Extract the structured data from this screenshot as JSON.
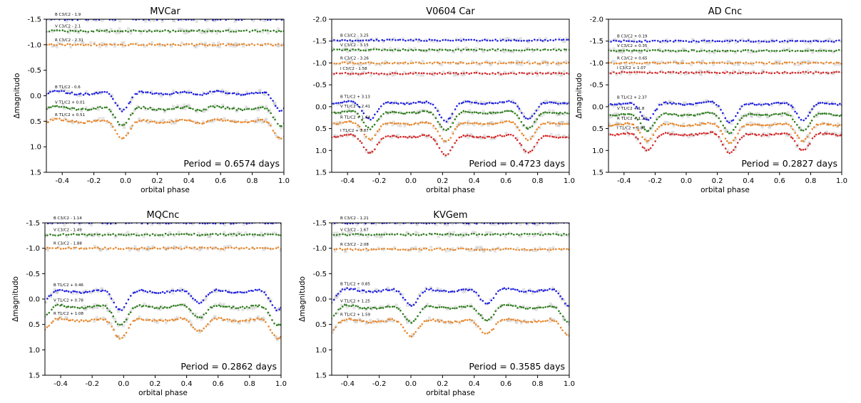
{
  "figure": {
    "xlabel": "orbital phase",
    "ylabel": "Δmagnitudo"
  },
  "chart_data": [
    {
      "type": "scatter",
      "title": "MVCar",
      "xlabel": "orbital phase",
      "ylabel": "Δmagnitudo",
      "xlim": [
        -0.5,
        1.0
      ],
      "ylim": [
        1.5,
        -1.5
      ],
      "y_inverted": true,
      "xticks": [
        "-0.4",
        "-0.2",
        "0.0",
        "0.2",
        "0.4",
        "0.6",
        "0.8",
        "1.0"
      ],
      "yticks": [
        "-1.5",
        "-1.0",
        "-0.5",
        "0.0",
        "0.5",
        "1.0",
        "1.5"
      ],
      "annotation": "Period = 0.6574 days",
      "series": [
        {
          "name": "B C3/C2 - 1.9",
          "color": "#1f1fe0",
          "kind": "flat",
          "base": -1.5
        },
        {
          "name": "V C3/C2 - 2.1",
          "color": "#2e7d1e",
          "kind": "flat",
          "base": -1.27
        },
        {
          "name": "R C3/C2 - 2.31",
          "color": "#e8862a",
          "kind": "flat",
          "base": -1.0
        },
        {
          "name": "B T1/C2 - 0.6",
          "color": "#1f1fe0",
          "kind": "lc",
          "base": -0.08,
          "min1_phase": -0.02,
          "min1_depth": 0.42,
          "min2_phase": 0.47,
          "min2_depth": 0.12
        },
        {
          "name": "V T1/C2 + 0.01",
          "color": "#2e7d1e",
          "kind": "lc",
          "base": 0.22,
          "min1_phase": -0.02,
          "min1_depth": 0.42,
          "min2_phase": 0.47,
          "min2_depth": 0.12
        },
        {
          "name": "R T1/C2 + 0.51",
          "color": "#e8862a",
          "kind": "lc",
          "base": 0.47,
          "min1_phase": -0.02,
          "min1_depth": 0.42,
          "min2_phase": 0.47,
          "min2_depth": 0.12
        }
      ]
    },
    {
      "type": "scatter",
      "title": "V0604 Car",
      "xlabel": "orbital phase",
      "ylabel": "",
      "xlim": [
        -0.5,
        1.0
      ],
      "ylim": [
        1.5,
        -2.0
      ],
      "y_inverted": true,
      "xticks": [
        "-0.4",
        "-0.2",
        "0.0",
        "0.2",
        "0.4",
        "0.6",
        "0.8",
        "1.0"
      ],
      "yticks": [
        "-2.0",
        "-1.5",
        "-1.0",
        "-0.5",
        "0.0",
        "0.5",
        "1.0",
        "1.5"
      ],
      "annotation": "Period = 0.4723 days",
      "series": [
        {
          "name": "B C3/C2 - 3.25",
          "color": "#1f1fe0",
          "kind": "flat",
          "base": -1.52
        },
        {
          "name": "V C3/C2 - 3.15",
          "color": "#2e7d1e",
          "kind": "flat",
          "base": -1.3
        },
        {
          "name": "R C3/C2 - 3.26",
          "color": "#e8862a",
          "kind": "flat",
          "base": -1.0
        },
        {
          "name": "I C3/C2 - 1.58",
          "color": "#d62728",
          "kind": "flat",
          "base": -0.76
        },
        {
          "name": "B T1/C2 + 3.13",
          "color": "#1f1fe0",
          "kind": "lc",
          "base": -0.12,
          "min1_phase": 0.22,
          "min1_depth": 0.5,
          "min2_phase": 0.74,
          "min2_depth": 0.45
        },
        {
          "name": "V T1/C2 + 2.41",
          "color": "#2e7d1e",
          "kind": "lc",
          "base": 0.1,
          "min1_phase": 0.22,
          "min1_depth": 0.5,
          "min2_phase": 0.74,
          "min2_depth": 0.45
        },
        {
          "name": "R T1/C2 + 1.64",
          "color": "#e8862a",
          "kind": "lc",
          "base": 0.35,
          "min1_phase": 0.22,
          "min1_depth": 0.5,
          "min2_phase": 0.74,
          "min2_depth": 0.45
        },
        {
          "name": "I T1/C2 + 3.87",
          "color": "#d62728",
          "kind": "lc",
          "base": 0.65,
          "min1_phase": 0.22,
          "min1_depth": 0.5,
          "min2_phase": 0.74,
          "min2_depth": 0.45
        }
      ]
    },
    {
      "type": "scatter",
      "title": "AD Cnc",
      "xlabel": "orbital phase",
      "ylabel": "Δmagnitudo",
      "xlim": [
        -0.5,
        1.0
      ],
      "ylim": [
        1.5,
        -2.0
      ],
      "y_inverted": true,
      "xticks": [
        "-0.4",
        "-0.2",
        "0.0",
        "0.2",
        "0.4",
        "0.6",
        "0.8",
        "1.0"
      ],
      "yticks": [
        "-2.0",
        "-1.5",
        "-1.0",
        "-0.5",
        "0.0",
        "0.5",
        "1.0",
        "1.5"
      ],
      "annotation": "Period = 0.2827 days",
      "series": [
        {
          "name": "B C3/C2 + 0.19",
          "color": "#1f1fe0",
          "kind": "flat",
          "base": -1.5
        },
        {
          "name": "V C3/C2 + 0.35",
          "color": "#2e7d1e",
          "kind": "flat",
          "base": -1.28
        },
        {
          "name": "R C3/C2 + 0.65",
          "color": "#e8862a",
          "kind": "flat",
          "base": -1.0
        },
        {
          "name": "I C3/C2 + 1.07",
          "color": "#d62728",
          "kind": "flat",
          "base": -0.78
        },
        {
          "name": "B T1/C2 + 2.37",
          "color": "#1f1fe0",
          "kind": "lc",
          "base": -0.1,
          "min1_phase": -0.25,
          "min1_depth": 0.45,
          "min2_phase": 0.28,
          "min2_depth": 0.5
        },
        {
          "name": "V T1/C2 + 1.8",
          "color": "#2e7d1e",
          "kind": "lc",
          "base": 0.15,
          "min1_phase": -0.25,
          "min1_depth": 0.45,
          "min2_phase": 0.28,
          "min2_depth": 0.5
        },
        {
          "name": "R T1/C2 + 1.22",
          "color": "#e8862a",
          "kind": "lc",
          "base": 0.38,
          "min1_phase": -0.25,
          "min1_depth": 0.45,
          "min2_phase": 0.28,
          "min2_depth": 0.5
        },
        {
          "name": "I T1/C2 + 0.87",
          "color": "#d62728",
          "kind": "lc",
          "base": 0.6,
          "min1_phase": -0.25,
          "min1_depth": 0.45,
          "min2_phase": 0.28,
          "min2_depth": 0.5
        }
      ]
    },
    {
      "type": "scatter",
      "title": "MQCnc",
      "xlabel": "orbital phase",
      "ylabel": "Δmagnitudo",
      "xlim": [
        -0.5,
        1.0
      ],
      "ylim": [
        1.5,
        -1.5
      ],
      "y_inverted": true,
      "xticks": [
        "-0.4",
        "-0.2",
        "0.0",
        "0.2",
        "0.4",
        "0.6",
        "0.8",
        "1.0"
      ],
      "yticks": [
        "-1.5",
        "-1.0",
        "-0.5",
        "0.0",
        "0.5",
        "1.0",
        "1.5"
      ],
      "annotation": "Period = 0.2862 days",
      "series": [
        {
          "name": "B C3/C2 - 1.14",
          "color": "#1f1fe0",
          "kind": "flat",
          "base": -1.5
        },
        {
          "name": "V C3/C2 - 1.49",
          "color": "#2e7d1e",
          "kind": "flat",
          "base": -1.27
        },
        {
          "name": "R C3/C2 - 1.88",
          "color": "#e8862a",
          "kind": "flat",
          "base": -1.0
        },
        {
          "name": "B T1/C2 + 0.46",
          "color": "#1f1fe0",
          "kind": "lc",
          "base": -0.18,
          "min1_phase": -0.02,
          "min1_depth": 0.45,
          "min2_phase": 0.48,
          "min2_depth": 0.3
        },
        {
          "name": "V T1/C2 + 0.78",
          "color": "#2e7d1e",
          "kind": "lc",
          "base": 0.12,
          "min1_phase": -0.02,
          "min1_depth": 0.45,
          "min2_phase": 0.48,
          "min2_depth": 0.3
        },
        {
          "name": "R T1/C2 + 1.08",
          "color": "#e8862a",
          "kind": "lc",
          "base": 0.38,
          "min1_phase": -0.02,
          "min1_depth": 0.45,
          "min2_phase": 0.48,
          "min2_depth": 0.3
        }
      ]
    },
    {
      "type": "scatter",
      "title": "KVGem",
      "xlabel": "orbital phase",
      "ylabel": "Δmagnitudo",
      "xlim": [
        -0.5,
        1.0
      ],
      "ylim": [
        1.5,
        -1.5
      ],
      "y_inverted": true,
      "xticks": [
        "-0.4",
        "-0.2",
        "0.0",
        "0.2",
        "0.4",
        "0.6",
        "0.8",
        "1.0"
      ],
      "yticks": [
        "-1.5",
        "-1.0",
        "-0.5",
        "0.0",
        "0.5",
        "1.0",
        "1.5"
      ],
      "annotation": "Period = 0.3585 days",
      "series": [
        {
          "name": "B C3/C2 - 1.21",
          "color": "#1f1fe0",
          "kind": "flat",
          "base": -1.5
        },
        {
          "name": "V C3/C2 - 1.67",
          "color": "#2e7d1e",
          "kind": "flat",
          "base": -1.27
        },
        {
          "name": "R C3/C2 - 2.08",
          "color": "#e8862a",
          "kind": "flat",
          "base": -0.98
        },
        {
          "name": "B T1/C2 + 0.85",
          "color": "#1f1fe0",
          "kind": "lc",
          "base": -0.2,
          "min1_phase": 0.0,
          "min1_depth": 0.38,
          "min2_phase": 0.48,
          "min2_depth": 0.34
        },
        {
          "name": "V T1/C2 + 1.25",
          "color": "#2e7d1e",
          "kind": "lc",
          "base": 0.13,
          "min1_phase": 0.0,
          "min1_depth": 0.38,
          "min2_phase": 0.48,
          "min2_depth": 0.34
        },
        {
          "name": "R T1/C2 + 1.59",
          "color": "#e8862a",
          "kind": "lc",
          "base": 0.4,
          "min1_phase": 0.0,
          "min1_depth": 0.38,
          "min2_phase": 0.48,
          "min2_depth": 0.34
        }
      ]
    }
  ]
}
